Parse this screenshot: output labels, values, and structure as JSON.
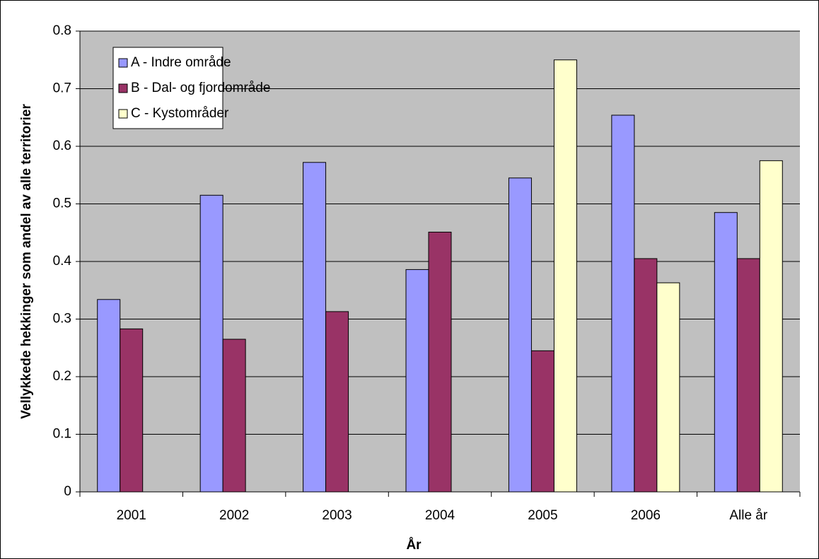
{
  "chart_data": {
    "type": "bar",
    "x_label": "År",
    "y_label": "Vellykkede hekkinger som andel av alle territorier",
    "categories": [
      "2001",
      "2002",
      "2003",
      "2004",
      "2005",
      "2006",
      "Alle år"
    ],
    "series": [
      {
        "name": "A - Indre område",
        "color": "#9999ff",
        "values": [
          0.334,
          0.515,
          0.572,
          0.386,
          0.545,
          0.654,
          0.485
        ]
      },
      {
        "name": "B - Dal- og fjordområde",
        "color": "#993366",
        "values": [
          0.283,
          0.265,
          0.313,
          0.451,
          0.245,
          0.405,
          0.405
        ]
      },
      {
        "name": "C - Kystområder",
        "color": "#ffffcc",
        "values": [
          null,
          null,
          null,
          null,
          0.75,
          0.363,
          0.575
        ]
      }
    ],
    "ylim": [
      0,
      0.8
    ],
    "yticks": [
      0,
      0.1,
      0.2,
      0.3,
      0.4,
      0.5,
      0.6,
      0.7,
      0.8
    ],
    "grid": true,
    "legend": "upper-left"
  }
}
